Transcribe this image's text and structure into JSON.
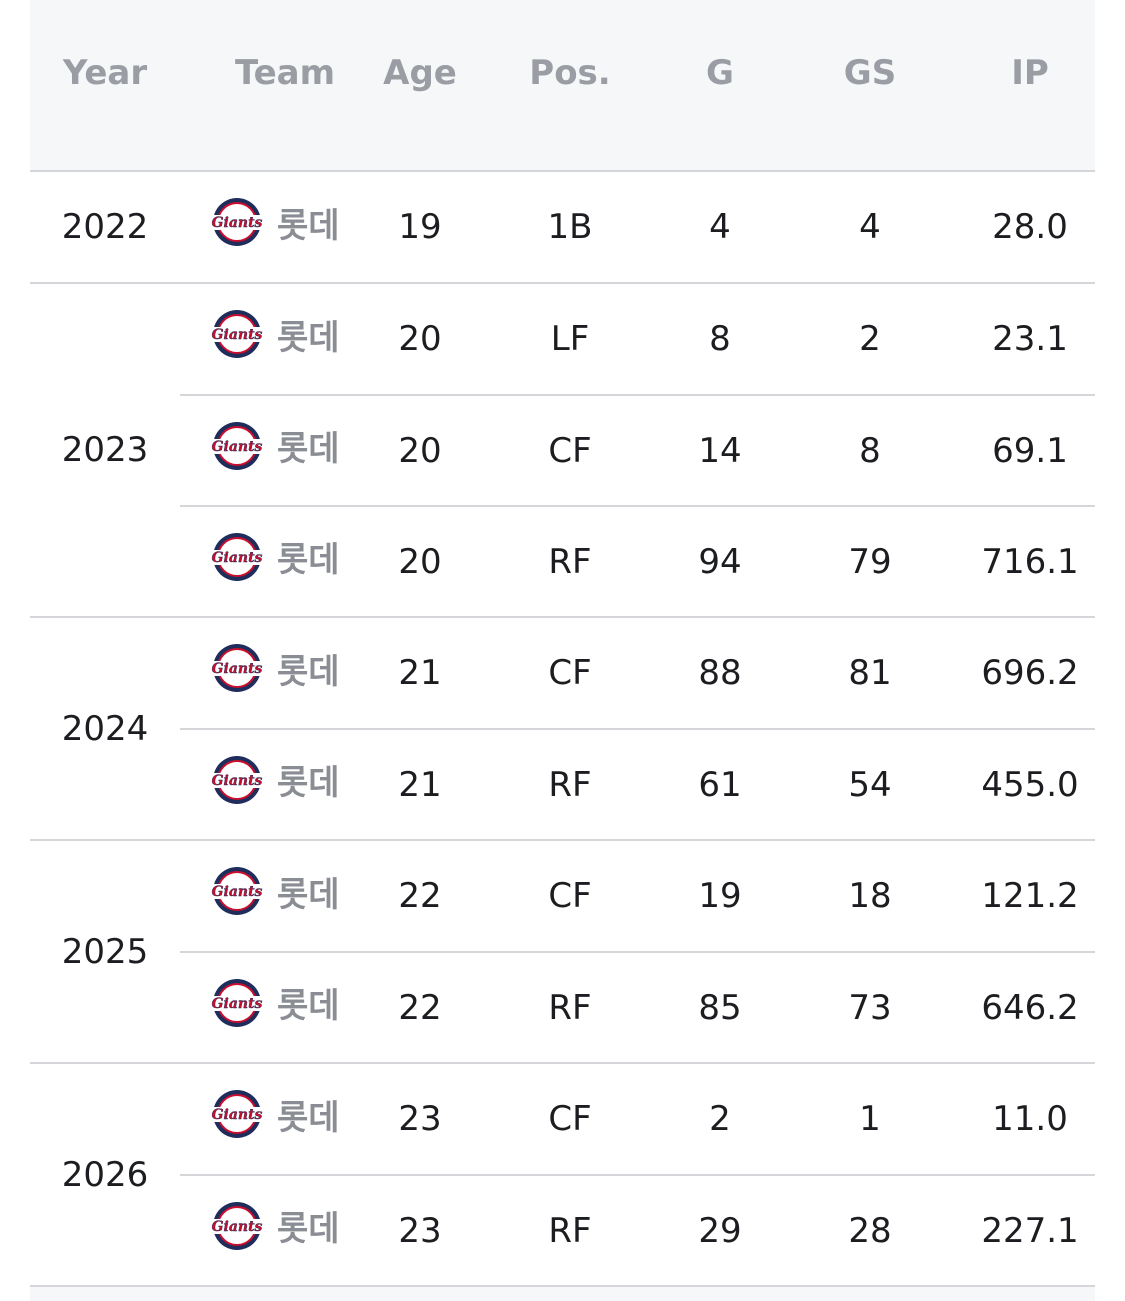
{
  "headers": {
    "year": "Year",
    "team": "Team",
    "age": "Age",
    "pos": "Pos.",
    "g": "G",
    "gs": "GS",
    "ip": "IP"
  },
  "groups": [
    {
      "year": "2022",
      "rows": [
        {
          "team": "롯데",
          "logo": "giants-logo-classic",
          "age": "19",
          "pos": "1B",
          "g": "4",
          "gs": "4",
          "ip": "28.0"
        }
      ]
    },
    {
      "year": "2023",
      "rows": [
        {
          "team": "롯데",
          "logo": "giants-logo",
          "age": "20",
          "pos": "LF",
          "g": "8",
          "gs": "2",
          "ip": "23.1"
        },
        {
          "team": "롯데",
          "logo": "giants-logo",
          "age": "20",
          "pos": "CF",
          "g": "14",
          "gs": "8",
          "ip": "69.1"
        },
        {
          "team": "롯데",
          "logo": "giants-logo",
          "age": "20",
          "pos": "RF",
          "g": "94",
          "gs": "79",
          "ip": "716.1"
        }
      ]
    },
    {
      "year": "2024",
      "rows": [
        {
          "team": "롯데",
          "logo": "giants-logo",
          "age": "21",
          "pos": "CF",
          "g": "88",
          "gs": "81",
          "ip": "696.2"
        },
        {
          "team": "롯데",
          "logo": "giants-logo",
          "age": "21",
          "pos": "RF",
          "g": "61",
          "gs": "54",
          "ip": "455.0"
        }
      ]
    },
    {
      "year": "2025",
      "rows": [
        {
          "team": "롯데",
          "logo": "giants-logo",
          "age": "22",
          "pos": "CF",
          "g": "19",
          "gs": "18",
          "ip": "121.2"
        },
        {
          "team": "롯데",
          "logo": "giants-logo",
          "age": "22",
          "pos": "RF",
          "g": "85",
          "gs": "73",
          "ip": "646.2"
        }
      ]
    },
    {
      "year": "2026",
      "rows": [
        {
          "team": "롯데",
          "logo": "giants-logo",
          "age": "23",
          "pos": "CF",
          "g": "2",
          "gs": "1",
          "ip": "11.0"
        },
        {
          "team": "롯데",
          "logo": "giants-logo",
          "age": "23",
          "pos": "RF",
          "g": "29",
          "gs": "28",
          "ip": "227.1"
        }
      ]
    }
  ],
  "colors": {
    "header_bg": "#f6f7f9",
    "header_text": "#9a9da3",
    "divider": "#d4d6da",
    "text": "#1c1d20",
    "team_text": "#8a8d93",
    "logo_navy": "#1f2d5c",
    "logo_red": "#c8102e"
  }
}
